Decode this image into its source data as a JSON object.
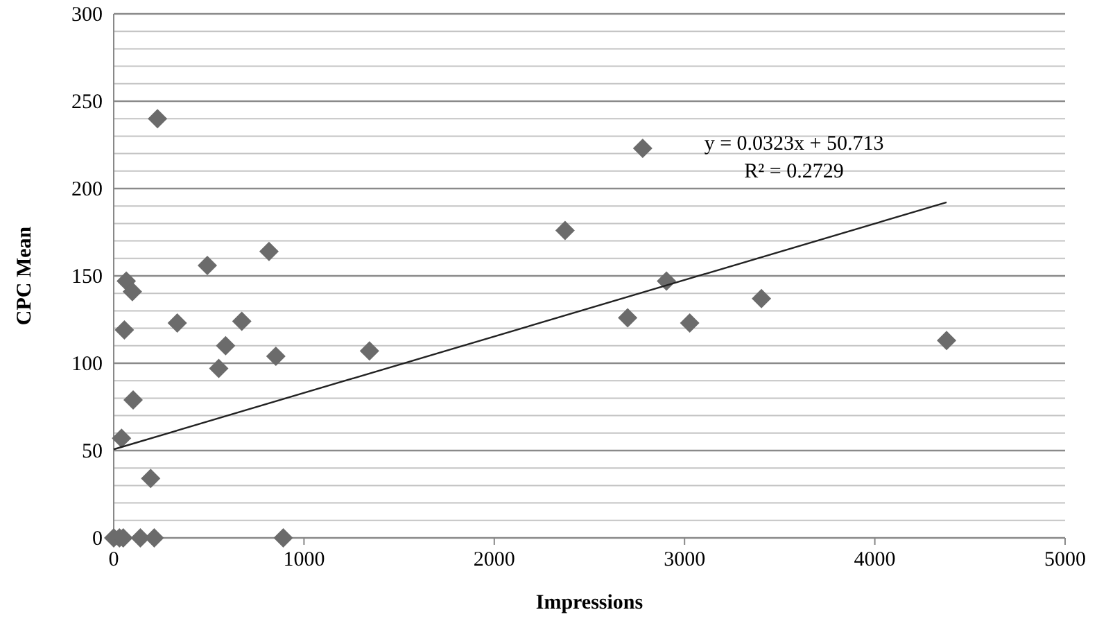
{
  "chart_data": {
    "type": "scatter",
    "xlabel": "Impressions",
    "ylabel": "CPC Mean",
    "xlim": [
      0,
      5000
    ],
    "ylim": [
      0,
      300
    ],
    "xticks": [
      0,
      1000,
      2000,
      3000,
      4000,
      5000
    ],
    "yticks": [
      0,
      {
        "value": 10,
        "label": null
      },
      {
        "value": 20,
        "label": null
      },
      {
        "value": 30,
        "label": null
      },
      {
        "value": 40,
        "label": null
      },
      50,
      {
        "value": 60,
        "label": null
      },
      {
        "value": 70,
        "label": null
      },
      {
        "value": 80,
        "label": null
      },
      {
        "value": 90,
        "label": null
      },
      100,
      {
        "value": 110,
        "label": null
      },
      {
        "value": 120,
        "label": null
      },
      {
        "value": 130,
        "label": null
      },
      {
        "value": 140,
        "label": null
      },
      150,
      {
        "value": 160,
        "label": null
      },
      {
        "value": 170,
        "label": null
      },
      {
        "value": 180,
        "label": null
      },
      {
        "value": 190,
        "label": null
      },
      200,
      {
        "value": 210,
        "label": null
      },
      {
        "value": 220,
        "label": null
      },
      {
        "value": 230,
        "label": null
      },
      {
        "value": 240,
        "label": null
      },
      250,
      {
        "value": 260,
        "label": null
      },
      {
        "value": 270,
        "label": null
      },
      {
        "value": 280,
        "label": null
      },
      {
        "value": 290,
        "label": null
      },
      300
    ],
    "grid": "y",
    "marker": "diamond",
    "series": [
      {
        "color": "#6b6b6b",
        "x": [
          230,
          816,
          492,
          66,
          98,
          56,
          334,
          673,
          588,
          552,
          852,
          1344,
          102,
          41,
          194,
          0,
          30,
          50,
          140,
          213,
          891,
          2372,
          2780,
          2905,
          2701,
          3027,
          3404,
          4377
        ],
        "values": [
          240,
          164,
          156,
          147,
          141,
          119,
          123,
          124,
          110,
          97,
          104,
          107,
          79,
          57,
          34,
          0,
          0,
          0,
          0,
          0,
          0,
          176,
          223,
          147,
          126,
          123,
          137,
          113
        ]
      },
      {
        "type": "line",
        "color": "#222222",
        "x": [
          0,
          4377
        ],
        "values": [
          50.7,
          192.1
        ],
        "marker": "none",
        "line_style": "solid"
      }
    ],
    "annotations": [
      "y = 0.0323x + 50.713",
      "R² = 0.2729"
    ]
  }
}
